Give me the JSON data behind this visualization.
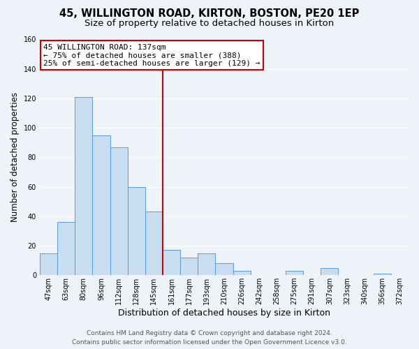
{
  "title": "45, WILLINGTON ROAD, KIRTON, BOSTON, PE20 1EP",
  "subtitle": "Size of property relative to detached houses in Kirton",
  "xlabel": "Distribution of detached houses by size in Kirton",
  "ylabel": "Number of detached properties",
  "bin_labels": [
    "47sqm",
    "63sqm",
    "80sqm",
    "96sqm",
    "112sqm",
    "128sqm",
    "145sqm",
    "161sqm",
    "177sqm",
    "193sqm",
    "210sqm",
    "226sqm",
    "242sqm",
    "258sqm",
    "275sqm",
    "291sqm",
    "307sqm",
    "323sqm",
    "340sqm",
    "356sqm",
    "372sqm"
  ],
  "bar_values": [
    15,
    36,
    121,
    95,
    87,
    60,
    43,
    17,
    12,
    15,
    8,
    3,
    0,
    0,
    3,
    0,
    5,
    0,
    0,
    1,
    0
  ],
  "bar_color": "#c9ddf0",
  "bar_edge_color": "#5b9bd5",
  "vline_color": "#cc0000",
  "vline_x_index": 6.5,
  "annotation_line1": "45 WILLINGTON ROAD: 137sqm",
  "annotation_line2": "← 75% of detached houses are smaller (388)",
  "annotation_line3": "25% of semi-detached houses are larger (129) →",
  "annotation_box_color": "white",
  "annotation_box_edge": "#cc0000",
  "ylim": [
    0,
    160
  ],
  "yticks": [
    0,
    20,
    40,
    60,
    80,
    100,
    120,
    140,
    160
  ],
  "footer_line1": "Contains HM Land Registry data © Crown copyright and database right 2024.",
  "footer_line2": "Contains public sector information licensed under the Open Government Licence v3.0.",
  "bg_color": "#eef2f9",
  "plot_bg_color": "#eef2f9",
  "grid_color": "white",
  "title_fontsize": 10.5,
  "subtitle_fontsize": 9.5,
  "xlabel_fontsize": 9,
  "ylabel_fontsize": 8.5,
  "tick_fontsize": 7,
  "annotation_fontsize": 8,
  "footer_fontsize": 6.5
}
